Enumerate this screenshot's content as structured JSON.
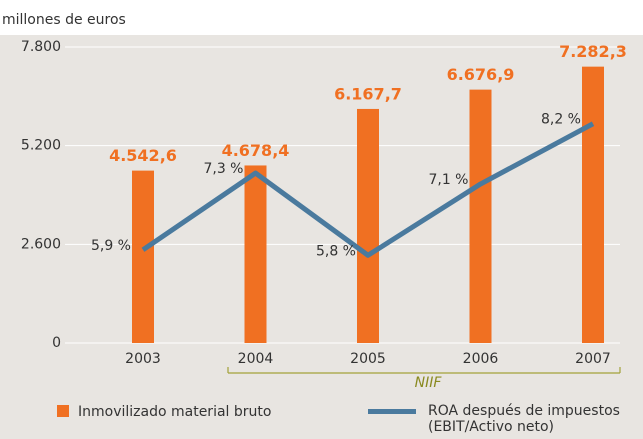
{
  "chart_data": {
    "type": "bar",
    "y_axis_label": "millones de euros",
    "categories": [
      "2003",
      "2004",
      "2005",
      "2006",
      "2007"
    ],
    "series": [
      {
        "name": "Inmovilizado material bruto",
        "type": "bar",
        "color": "#f07022",
        "values": [
          4542.6,
          4678.4,
          6167.7,
          6676.9,
          7282.3
        ],
        "value_labels": [
          "4.542,6",
          "4.678,4",
          "6.167,7",
          "6.676,9",
          "7.282,3"
        ]
      },
      {
        "name": "ROA después de impuestos (EBIT/Activo neto)",
        "type": "line",
        "axis": "y2",
        "color": "#4a7a9e",
        "values": [
          5.9,
          7.3,
          5.8,
          7.1,
          8.2
        ],
        "value_labels": [
          "5,9 %",
          "7,3 %",
          "5,8 %",
          "7,1 %",
          "8,2 %"
        ]
      }
    ],
    "ylim": [
      0,
      7800
    ],
    "yticks": [
      0,
      {
        "value": 2600,
        "label": "2.600"
      },
      {
        "value": 5200,
        "label": "5.200"
      },
      {
        "value": 7800,
        "label": "7.800"
      }
    ],
    "y2lim": [
      4.2,
      9.6
    ],
    "grid": true,
    "annotation": "NIIF"
  }
}
